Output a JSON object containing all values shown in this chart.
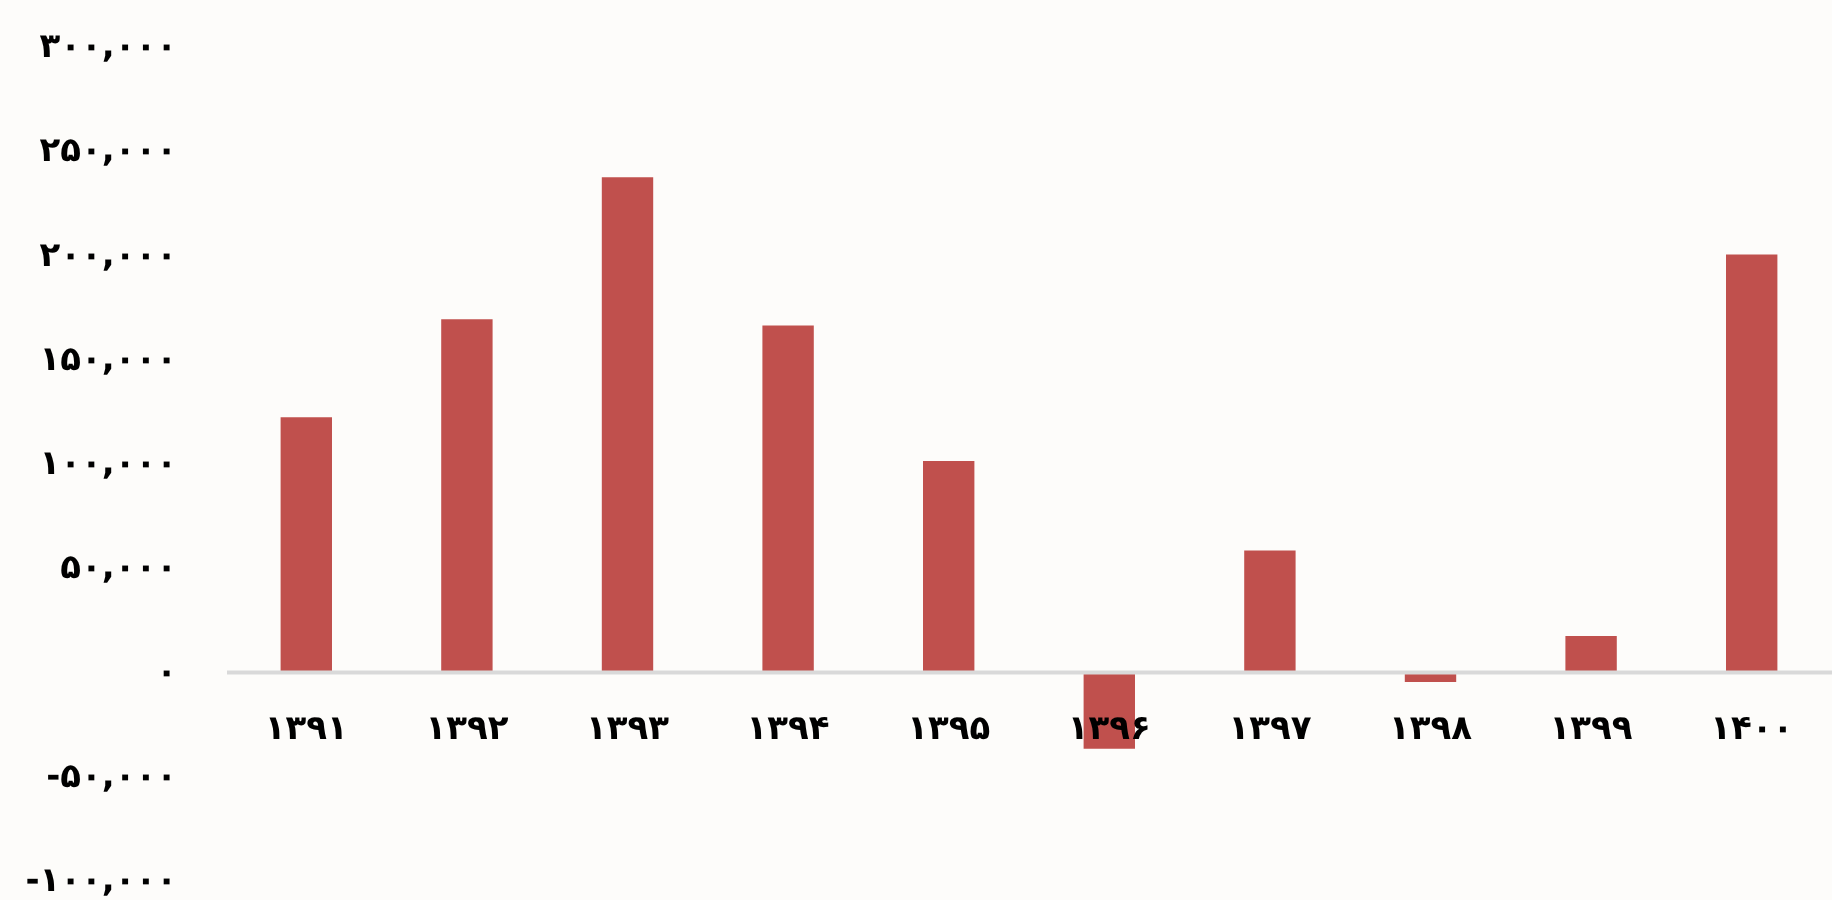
{
  "chart_data": {
    "type": "bar",
    "categories": [
      "۱۳۹۱",
      "۱۳۹۲",
      "۱۳۹۳",
      "۱۳۹۴",
      "۱۳۹۵",
      "۱۳۹۶",
      "۱۳۹۷",
      "۱۳۹۸",
      "۱۳۹۹",
      "۱۴۰۰"
    ],
    "values": [
      122000,
      169000,
      237000,
      166000,
      101000,
      -37000,
      58000,
      -5000,
      17000,
      200000
    ],
    "color": "#c0504d",
    "ylim": [
      -100000,
      300000
    ],
    "yticks": [
      {
        "value": -100000,
        "label": "-۱۰۰,۰۰۰"
      },
      {
        "value": -50000,
        "label": "-۵۰,۰۰۰"
      },
      {
        "value": 0,
        "label": "۰"
      },
      {
        "value": 50000,
        "label": "۵۰,۰۰۰"
      },
      {
        "value": 100000,
        "label": "۱۰۰,۰۰۰"
      },
      {
        "value": 150000,
        "label": "۱۵۰,۰۰۰"
      },
      {
        "value": 200000,
        "label": "۲۰۰,۰۰۰"
      },
      {
        "value": 250000,
        "label": "۲۵۰,۰۰۰"
      },
      {
        "value": 300000,
        "label": "۳۰۰,۰۰۰"
      }
    ]
  }
}
